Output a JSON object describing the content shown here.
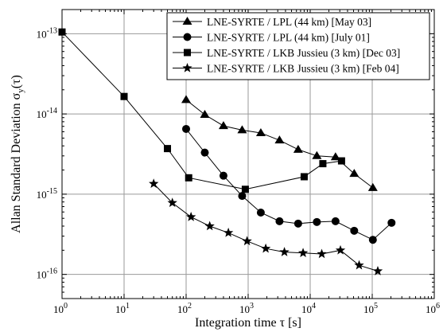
{
  "chart_data": {
    "type": "line",
    "title": "",
    "xlabel": "Integration time τ [s]",
    "ylabel": "Allan Standard Deviation σy(τ)",
    "x_scale": "log",
    "y_scale": "log",
    "xlim": [
      1,
      1000000
    ],
    "ylim": [
      5e-17,
      2e-13
    ],
    "x_tick_labels": [
      {
        "base": "10",
        "exp": "0"
      },
      {
        "base": "10",
        "exp": "1"
      },
      {
        "base": "10",
        "exp": "2"
      },
      {
        "base": "10",
        "exp": "3"
      },
      {
        "base": "10",
        "exp": "4"
      },
      {
        "base": "10",
        "exp": "5"
      },
      {
        "base": "10",
        "exp": "6"
      }
    ],
    "y_tick_labels": [
      {
        "base": "10",
        "exp": "-16"
      },
      {
        "base": "10",
        "exp": "-15"
      },
      {
        "base": "10",
        "exp": "-14"
      },
      {
        "base": "10",
        "exp": "-13"
      }
    ],
    "grid": true,
    "legend_position": "top-right",
    "series": [
      {
        "name": "LNE-SYRTE / LPL (44 km) [May 03]",
        "marker": "triangle",
        "x": [
          100,
          200,
          400,
          800,
          1600,
          3200,
          6400,
          12800,
          25600,
          51200,
          102400
        ],
        "y": [
          1.5e-14,
          9.8e-15,
          7.1e-15,
          6.3e-15,
          5.8e-15,
          4.7e-15,
          3.6e-15,
          3e-15,
          2.9e-15,
          1.8e-15,
          1.2e-15
        ]
      },
      {
        "name": "LNE-SYRTE / LPL (44 km) [July 01]",
        "marker": "circle",
        "x": [
          100,
          200,
          400,
          800,
          1600,
          3200,
          6400,
          12800,
          25600,
          51200,
          102400,
          204800
        ],
        "y": [
          6.5e-15,
          3.3e-15,
          1.7e-15,
          9.5e-16,
          5.9e-16,
          4.6e-16,
          4.3e-16,
          4.5e-16,
          4.6e-16,
          3.5e-16,
          2.7e-16,
          4.4e-16
        ]
      },
      {
        "name": "LNE-SYRTE / LKB Jussieu (3 km) [Dec 03]",
        "marker": "square",
        "x": [
          1,
          10,
          50,
          110,
          900,
          8000,
          16000,
          32000
        ],
        "y": [
          1.05e-13,
          1.65e-14,
          3.7e-15,
          1.6e-15,
          1.15e-15,
          1.65e-15,
          2.4e-15,
          2.6e-15
        ]
      },
      {
        "name": "LNE-SYRTE / LKB Jussieu (3 km) [Feb 04]",
        "marker": "star",
        "x": [
          30,
          60,
          120,
          240,
          480,
          960,
          1920,
          3840,
          7680,
          15360,
          30720,
          61440,
          122880
        ],
        "y": [
          1.35e-15,
          7.8e-16,
          5.2e-16,
          4e-16,
          3.3e-16,
          2.6e-16,
          2.1e-16,
          1.9e-16,
          1.85e-16,
          1.8e-16,
          2e-16,
          1.3e-16,
          1.1e-16
        ]
      }
    ]
  }
}
